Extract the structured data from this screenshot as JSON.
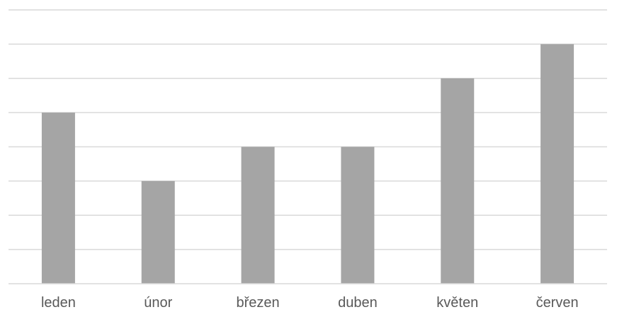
{
  "chart_data": {
    "type": "bar",
    "title": "",
    "xlabel": "",
    "ylabel": "",
    "categories": [
      "leden",
      "únor",
      "březen",
      "duben",
      "květen",
      "červen"
    ],
    "values": [
      5,
      3,
      4,
      4,
      6,
      7
    ],
    "ylim": [
      0,
      8
    ],
    "grid": true,
    "y_tick_labels_visible": false,
    "legend": "none",
    "colors": {
      "bar": "#a5a5a5",
      "grid": "#d9d9d9",
      "axis": "#d9d9d9",
      "label": "#595959"
    }
  }
}
